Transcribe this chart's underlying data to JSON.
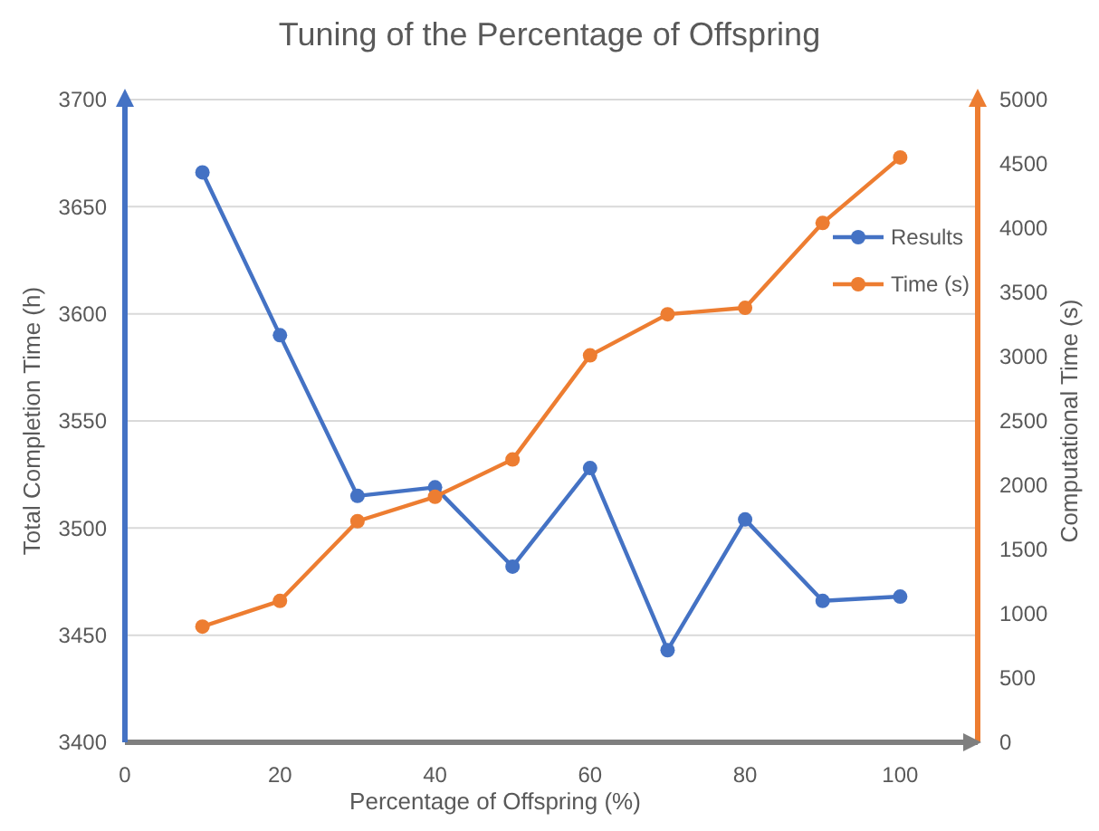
{
  "chart_data": {
    "type": "line",
    "title": "Tuning of the Percentage of Offspring",
    "xlabel": "Percentage of Offspring (%)",
    "ylabel": "Total Completion Time (h)",
    "y2label": "Computational Time (s)",
    "x": [
      10,
      20,
      30,
      40,
      50,
      60,
      70,
      80,
      90,
      100
    ],
    "series": [
      {
        "name": "Results",
        "color": "#4472c4",
        "values": [
          3666,
          3590,
          3515,
          3519,
          3482,
          3528,
          3443,
          3504,
          3466,
          3468
        ]
      },
      {
        "name": "Time (s)",
        "color": "#ed7d31",
        "axis": "y2",
        "values": [
          900,
          1100,
          1720,
          1910,
          2200,
          3010,
          3330,
          3380,
          4040,
          4550
        ]
      }
    ],
    "xlim": [
      0,
      110
    ],
    "xticks": [
      0,
      20,
      40,
      60,
      80,
      100
    ],
    "ylim": [
      3400,
      3700
    ],
    "yticks": [
      3400,
      3450,
      3500,
      3550,
      3600,
      3650,
      3700
    ],
    "y2lim": [
      0,
      5000
    ],
    "y2ticks": [
      0,
      500,
      1000,
      1500,
      2000,
      2500,
      3000,
      3500,
      4000,
      4500,
      5000
    ],
    "grid": "y",
    "legend": "right",
    "marker": "circle",
    "line_style": "solid"
  }
}
